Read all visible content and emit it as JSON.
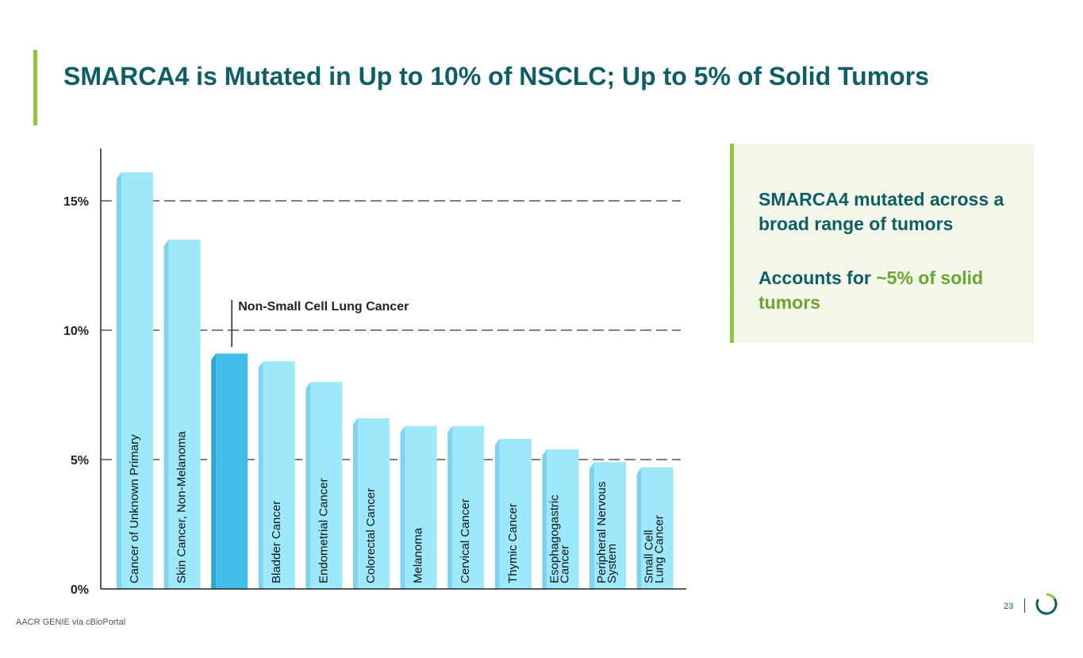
{
  "slide": {
    "title": "SMARCA4 is Mutated in Up to 10% of NSCLC; Up to 5% of Solid Tumors",
    "callout": {
      "line1": "SMARCA4 mutated across a broad range of tumors",
      "line2_prefix": "Accounts for ",
      "line2_highlight": "~5% of solid tumors"
    },
    "source": "AACR GENIE via cBioPortal",
    "page_number": "23",
    "colors": {
      "title": "#0f5e66",
      "accent": "#8dc63f",
      "highlight_green": "#6aa62e",
      "bar": "#9ee8fb",
      "bar_highlight": "#41bfe8"
    }
  },
  "chart_data": {
    "type": "bar",
    "categories": [
      "Cancer of Unknown Primary",
      "Skin Cancer, Non-Melanoma",
      "Non-Small Cell Lung Cancer",
      "Bladder Cancer",
      "Endometrial Cancer",
      "Colorectal Cancer",
      "Melanoma",
      "Cervical Cancer",
      "Thymic Cancer",
      "Esophagogastric Cancer",
      "Peripheral Nervous System",
      "Small Cell Lung Cancer"
    ],
    "bar_labels": [
      [
        "Cancer of Unknown Primary"
      ],
      [
        "Skin Cancer, Non-Melanoma"
      ],
      [],
      [
        "Bladder Cancer"
      ],
      [
        "Endometrial Cancer"
      ],
      [
        "Colorectal Cancer"
      ],
      [
        "Melanoma"
      ],
      [
        "Cervical Cancer"
      ],
      [
        "Thymic Cancer"
      ],
      [
        "Esophagogastric",
        "Cancer"
      ],
      [
        "Peripheral Nervous",
        "System"
      ],
      [
        "Small Cell",
        "Lung Cancer"
      ]
    ],
    "values": [
      16.1,
      13.5,
      9.1,
      8.8,
      8.0,
      6.6,
      6.3,
      6.3,
      5.8,
      5.4,
      4.9,
      4.7
    ],
    "highlight_index": 2,
    "annotation": "Non-Small Cell Lung Cancer",
    "yticks": [
      0,
      5,
      10,
      15
    ],
    "ytick_labels": [
      "0%",
      "5%",
      "10%",
      "15%"
    ],
    "ylim": [
      0,
      17
    ],
    "gridlines": [
      5,
      10,
      15
    ],
    "xlabel": "",
    "ylabel": ""
  }
}
